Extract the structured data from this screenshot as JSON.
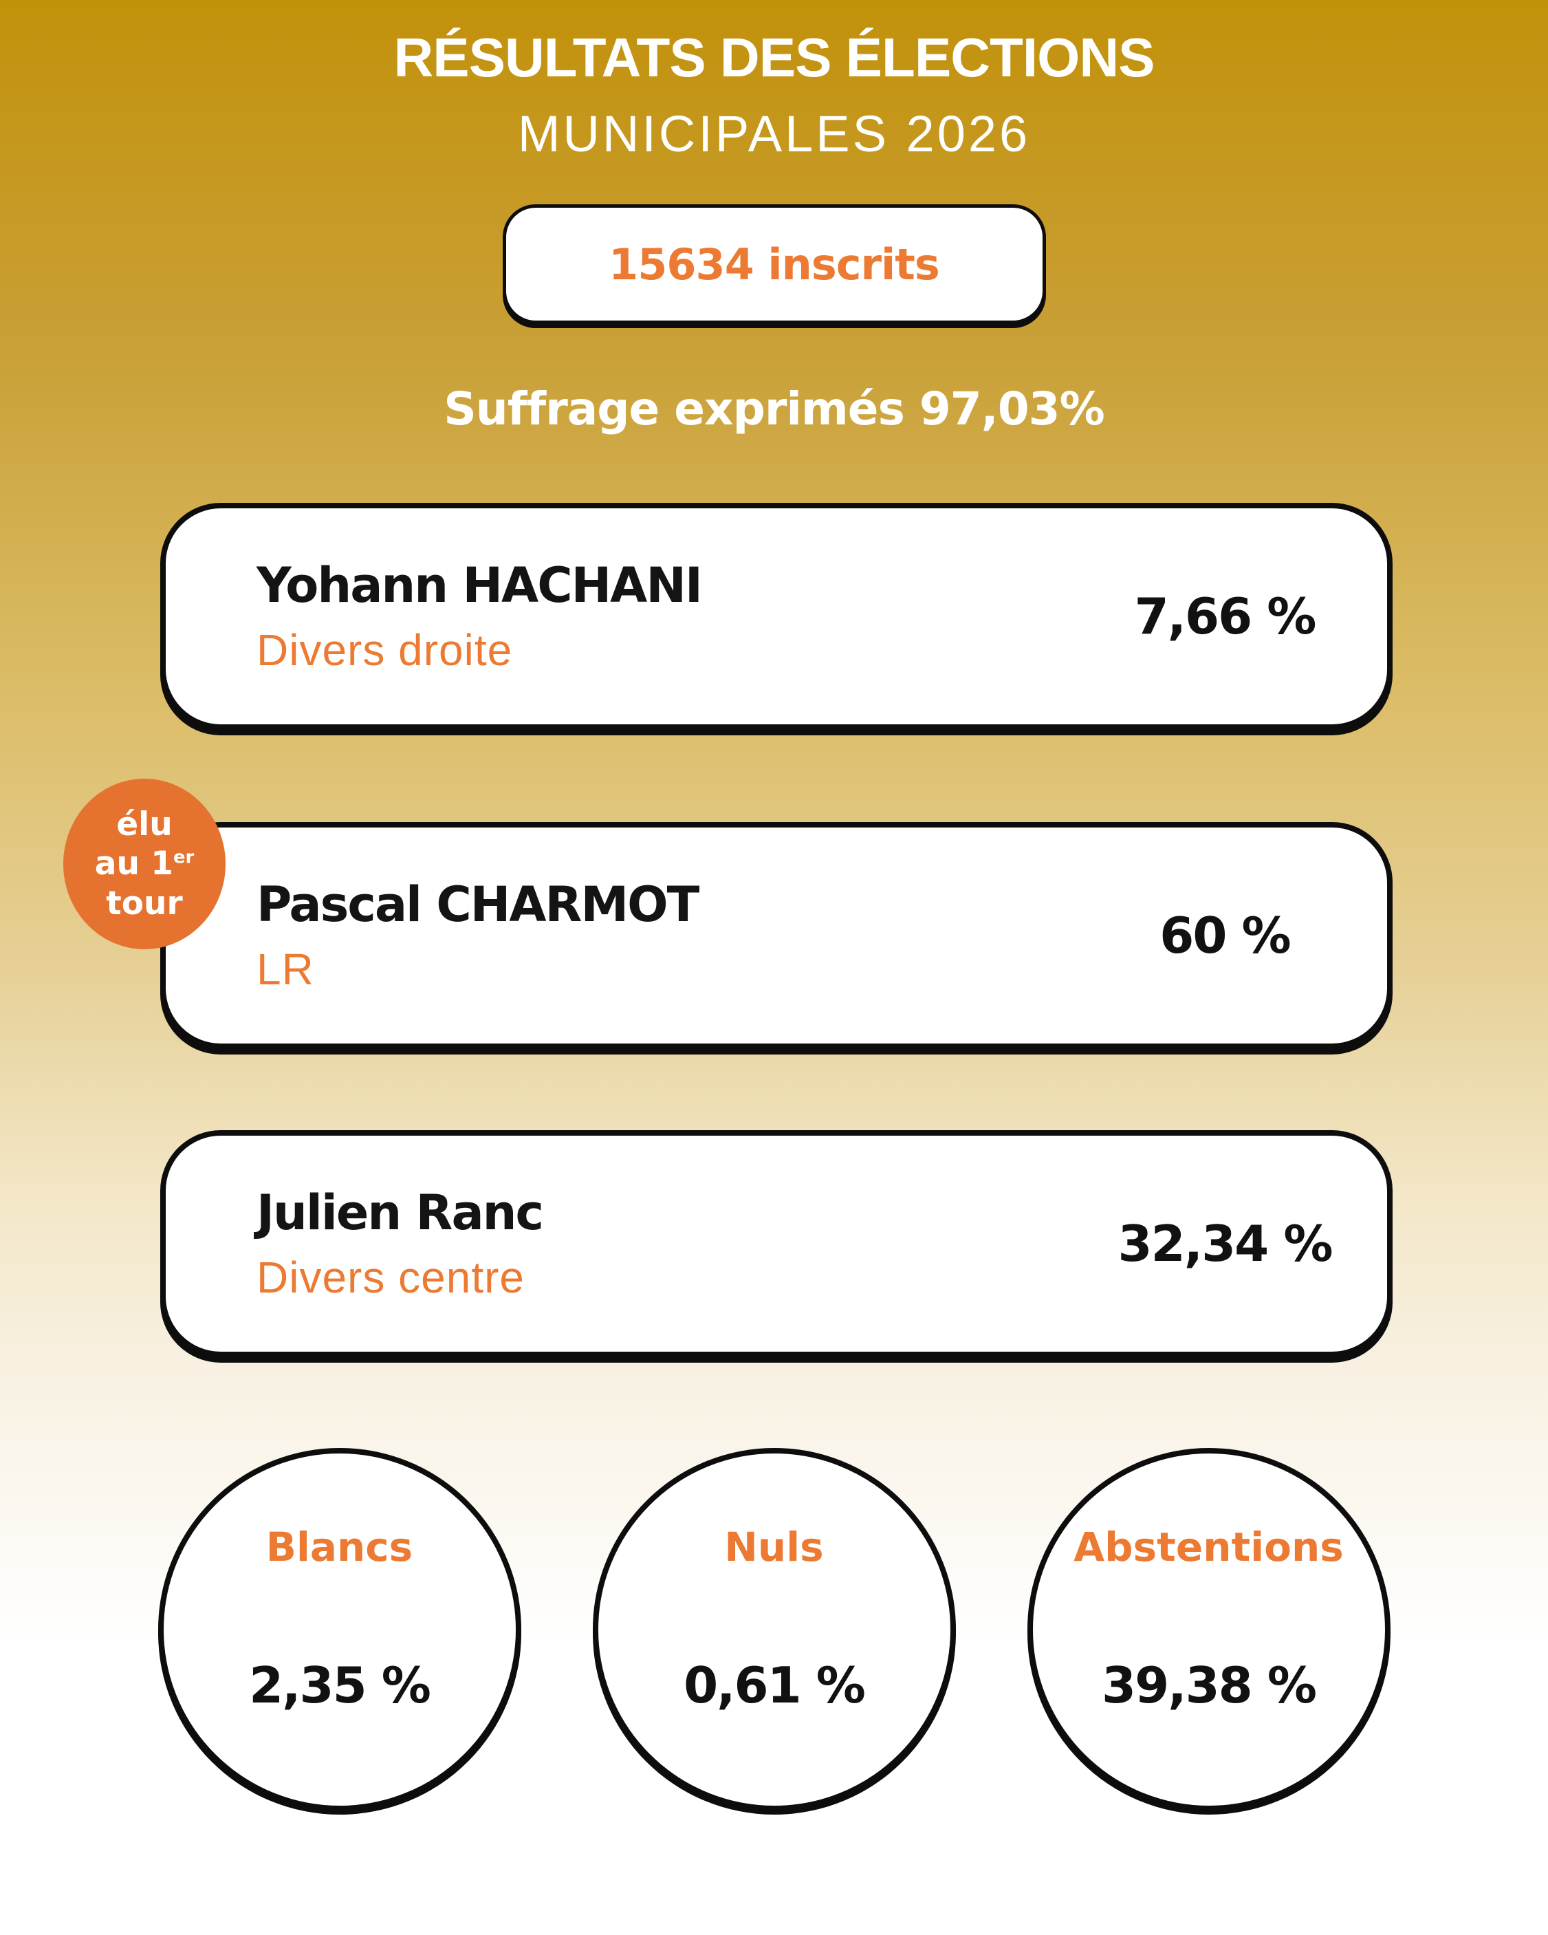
{
  "header": {
    "title_line1": "RÉSULTATS DES ÉLECTIONS",
    "title_line2": "MUNICIPALES 2026"
  },
  "inscrits_badge": "15634 inscrits",
  "suffrage_line": "Suffrage exprimés 97,03%",
  "elected_badge": {
    "line1": "élu",
    "line2_text": "au 1",
    "line2_sup": "er",
    "line3": "tour"
  },
  "candidates": [
    {
      "name": "Yohann HACHANI",
      "party": "Divers droite",
      "score": "7,66 %"
    },
    {
      "name": "Pascal CHARMOT",
      "party": "LR",
      "score": "60 %"
    },
    {
      "name": "Julien Ranc",
      "party": "Divers centre",
      "score": "32,34 %"
    }
  ],
  "stats": [
    {
      "label": "Blancs",
      "value": "2,35 %"
    },
    {
      "label": "Nuls",
      "value": "0,61 %"
    },
    {
      "label": "Abstentions",
      "value": "39,38 %"
    }
  ],
  "colors": {
    "accent_orange": "#EC7A33",
    "badge_orange": "#E5732F",
    "gold_top": "#C2910B",
    "card_background": "#FFFFFF",
    "outline_black": "#0D0D0D"
  },
  "chart_data": {
    "type": "table",
    "title": "RÉSULTATS DES ÉLECTIONS MUNICIPALES 2026",
    "registered_voters": 15634,
    "suffrage_exprimes_pct": 97.03,
    "results": [
      {
        "candidate": "Yohann HACHANI",
        "party": "Divers droite",
        "score_pct": 7.66,
        "elected_first_round": false
      },
      {
        "candidate": "Pascal CHARMOT",
        "party": "LR",
        "score_pct": 60.0,
        "elected_first_round": true
      },
      {
        "candidate": "Julien Ranc",
        "party": "Divers centre",
        "score_pct": 32.34,
        "elected_first_round": false
      }
    ],
    "other": [
      {
        "label": "Blancs",
        "pct": 2.35
      },
      {
        "label": "Nuls",
        "pct": 0.61
      },
      {
        "label": "Abstentions",
        "pct": 39.38
      }
    ]
  }
}
